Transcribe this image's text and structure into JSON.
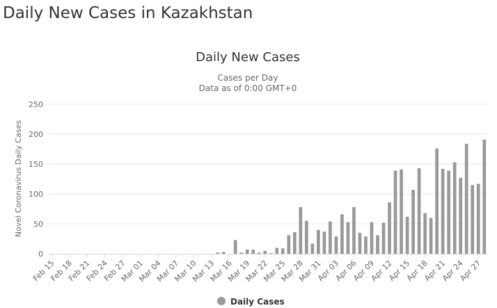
{
  "page": {
    "heading": "Daily New Cases in Kazakhstan"
  },
  "chart_data": {
    "type": "bar",
    "title": "Daily New Cases",
    "subtitle_lines": [
      "Cases per Day",
      "Data as of 0:00 GMT+0"
    ],
    "ylabel": "Novel Coronavirus Daily Cases",
    "xlabel": "",
    "ylim": [
      0,
      250
    ],
    "yticks": [
      0,
      50,
      100,
      150,
      200,
      250
    ],
    "grid": true,
    "legend_position": "bottom-center",
    "x_tick_labels": [
      "Feb 15",
      "Feb 18",
      "Feb 21",
      "Feb 24",
      "Feb 27",
      "Mar 01",
      "Mar 04",
      "Mar 07",
      "Mar 10",
      "Mar 13",
      "Mar 16",
      "Mar 19",
      "Mar 22",
      "Mar 25",
      "Mar 28",
      "Mar 31",
      "Apr 03",
      "Apr 06",
      "Apr 09",
      "Apr 12",
      "Apr 15",
      "Apr 18",
      "Apr 21",
      "Apr 24",
      "Apr 27"
    ],
    "categories": [
      "Feb 15",
      "Feb 16",
      "Feb 17",
      "Feb 18",
      "Feb 19",
      "Feb 20",
      "Feb 21",
      "Feb 22",
      "Feb 23",
      "Feb 24",
      "Feb 25",
      "Feb 26",
      "Feb 27",
      "Feb 28",
      "Feb 29",
      "Mar 01",
      "Mar 02",
      "Mar 03",
      "Mar 04",
      "Mar 05",
      "Mar 06",
      "Mar 07",
      "Mar 08",
      "Mar 09",
      "Mar 10",
      "Mar 11",
      "Mar 12",
      "Mar 13",
      "Mar 14",
      "Mar 15",
      "Mar 16",
      "Mar 17",
      "Mar 18",
      "Mar 19",
      "Mar 20",
      "Mar 21",
      "Mar 22",
      "Mar 23",
      "Mar 24",
      "Mar 25",
      "Mar 26",
      "Mar 27",
      "Mar 28",
      "Mar 29",
      "Mar 30",
      "Mar 31",
      "Apr 01",
      "Apr 02",
      "Apr 03",
      "Apr 04",
      "Apr 05",
      "Apr 06",
      "Apr 07",
      "Apr 08",
      "Apr 09",
      "Apr 10",
      "Apr 11",
      "Apr 12",
      "Apr 13",
      "Apr 14",
      "Apr 15",
      "Apr 16",
      "Apr 17",
      "Apr 18",
      "Apr 19",
      "Apr 20",
      "Apr 21",
      "Apr 22",
      "Apr 23",
      "Apr 24",
      "Apr 25",
      "Apr 26",
      "Apr 27",
      "Apr 28"
    ],
    "series": [
      {
        "name": "Daily Cases",
        "color": "#999999",
        "values": [
          0,
          0,
          0,
          0,
          0,
          0,
          0,
          0,
          0,
          0,
          0,
          0,
          0,
          0,
          0,
          0,
          0,
          0,
          0,
          0,
          0,
          0,
          0,
          0,
          0,
          0,
          0,
          0,
          2,
          3,
          0,
          23,
          2,
          7,
          7,
          2,
          5,
          1,
          10,
          9,
          31,
          36,
          78,
          55,
          17,
          40,
          37,
          54,
          29,
          66,
          53,
          78,
          35,
          29,
          53,
          31,
          52,
          86,
          139,
          141,
          62,
          107,
          143,
          68,
          60,
          176,
          142,
          139,
          153,
          127,
          184,
          115,
          117,
          191
        ]
      }
    ]
  }
}
